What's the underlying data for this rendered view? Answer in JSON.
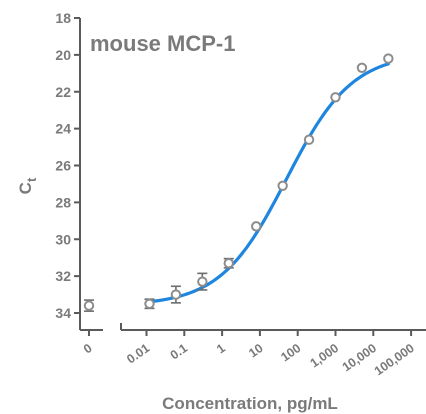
{
  "chart_data": {
    "type": "scatter",
    "title": "mouse MCP-1",
    "xlabel": "Concentration, pg/mL",
    "ylabel": {
      "main": "C",
      "sub": "t"
    },
    "x_scale": "log",
    "y_inverted": true,
    "ylim": [
      18,
      34
    ],
    "y_ticks": [
      18,
      20,
      22,
      24,
      26,
      28,
      30,
      32,
      34
    ],
    "x_ticks": [
      {
        "value": 0,
        "label": "0"
      },
      {
        "value": 0.01,
        "label": "0.01"
      },
      {
        "value": 0.1,
        "label": "0.1"
      },
      {
        "value": 1,
        "label": "1"
      },
      {
        "value": 10,
        "label": "10"
      },
      {
        "value": 100,
        "label": "100"
      },
      {
        "value": 1000,
        "label": "1,000"
      },
      {
        "value": 10000,
        "label": "10,000"
      },
      {
        "value": 100000,
        "label": "100,000"
      }
    ],
    "grid": false,
    "series": [
      {
        "points": [
          {
            "x": 0,
            "y": 33.6,
            "err": 0.3
          },
          {
            "x": 0.012,
            "y": 33.5,
            "err": 0.25
          },
          {
            "x": 0.06,
            "y": 33.0,
            "err": 0.45
          },
          {
            "x": 0.3,
            "y": 32.3,
            "err": 0.45
          },
          {
            "x": 1.5,
            "y": 31.3,
            "err": 0.25
          },
          {
            "x": 8,
            "y": 29.3,
            "err": 0.1
          },
          {
            "x": 40,
            "y": 27.1,
            "err": 0.1
          },
          {
            "x": 200,
            "y": 24.6,
            "err": 0.1
          },
          {
            "x": 1000,
            "y": 22.3,
            "err": 0.1
          },
          {
            "x": 5000,
            "y": 20.7,
            "err": 0.1
          },
          {
            "x": 25000,
            "y": 20.2,
            "err": 0.1
          }
        ],
        "fit": {
          "model": "4PL",
          "top": 33.6,
          "bottom": 19.9,
          "ec50": 50,
          "hill": 0.5
        }
      }
    ],
    "colors": {
      "points": "#8c8c8c",
      "fit_line": "#1f86e0",
      "axes": "#5a5a5a",
      "text": "#7a7a7a"
    }
  }
}
